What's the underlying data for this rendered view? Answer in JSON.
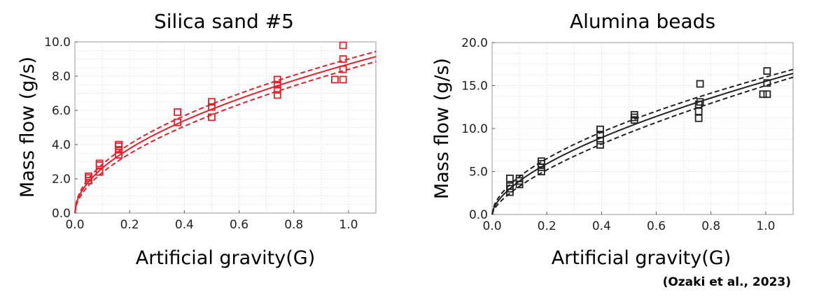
{
  "citation": "(Ozaki et al., 2023)",
  "chart_data": [
    {
      "type": "scatter",
      "title": "Silica sand #5",
      "xlabel": "Artificial gravity(G)",
      "ylabel": "Mass flow (g/s)",
      "xlim": [
        0,
        1.1
      ],
      "ylim": [
        0,
        10
      ],
      "xticks": [
        "0.0",
        "0.2",
        "0.4",
        "0.6",
        "0.8",
        "1.0"
      ],
      "yticks": [
        "0.0",
        "2.0",
        "4.0",
        "6.0",
        "8.0",
        "10.0"
      ],
      "grid": true,
      "color": "#e8202a",
      "series": [
        {
          "kind": "points",
          "x": [
            0.05,
            0.05,
            0.05,
            0.09,
            0.09,
            0.09,
            0.16,
            0.16,
            0.16,
            0.16,
            0.375,
            0.375,
            0.5,
            0.5,
            0.5,
            0.74,
            0.74,
            0.74,
            0.74,
            0.95,
            0.98,
            0.98,
            0.98,
            0.98
          ],
          "y": [
            1.9,
            2.05,
            2.15,
            2.4,
            2.8,
            2.9,
            3.4,
            3.7,
            3.9,
            4.0,
            5.3,
            5.9,
            5.6,
            6.2,
            6.5,
            6.9,
            7.2,
            7.5,
            7.8,
            7.8,
            7.8,
            8.4,
            9.0,
            9.8
          ]
        },
        {
          "kind": "fit",
          "style": "solid",
          "a": 8.7,
          "b": 0.52
        },
        {
          "kind": "fit",
          "style": "dashed",
          "a": 9.0,
          "b": 0.5
        },
        {
          "kind": "fit",
          "style": "dashed",
          "a": 8.4,
          "b": 0.55
        }
      ]
    },
    {
      "type": "scatter",
      "title": "Alumina beads",
      "xlabel": "Artificial gravity(G)",
      "ylabel": "Mass flow (g/s)",
      "xlim": [
        0,
        1.1
      ],
      "ylim": [
        0,
        20
      ],
      "xticks": [
        "0.0",
        "0.2",
        "0.4",
        "0.6",
        "0.8",
        "1.0"
      ],
      "yticks": [
        "0.0",
        "5.0",
        "10.0",
        "15.0",
        "20.0"
      ],
      "grid": true,
      "color": "#222222",
      "series": [
        {
          "kind": "points",
          "x": [
            0.065,
            0.065,
            0.065,
            0.065,
            0.1,
            0.1,
            0.1,
            0.18,
            0.18,
            0.18,
            0.18,
            0.395,
            0.395,
            0.395,
            0.395,
            0.52,
            0.52,
            0.52,
            0.755,
            0.755,
            0.755,
            0.76,
            0.76,
            0.99,
            1.005,
            1.005,
            1.005
          ],
          "y": [
            2.6,
            3.0,
            3.3,
            4.2,
            3.5,
            3.9,
            4.2,
            5.0,
            5.5,
            5.9,
            6.2,
            8.1,
            8.6,
            9.3,
            9.9,
            11.0,
            11.3,
            11.6,
            11.2,
            12.0,
            12.8,
            13.1,
            15.2,
            14.0,
            14.0,
            15.3,
            16.7
          ]
        },
        {
          "kind": "fit",
          "style": "solid",
          "a": 15.5,
          "b": 0.6
        },
        {
          "kind": "fit",
          "style": "dashed",
          "a": 16.0,
          "b": 0.56
        },
        {
          "kind": "fit",
          "style": "dashed",
          "a": 15.0,
          "b": 0.66
        }
      ]
    }
  ]
}
